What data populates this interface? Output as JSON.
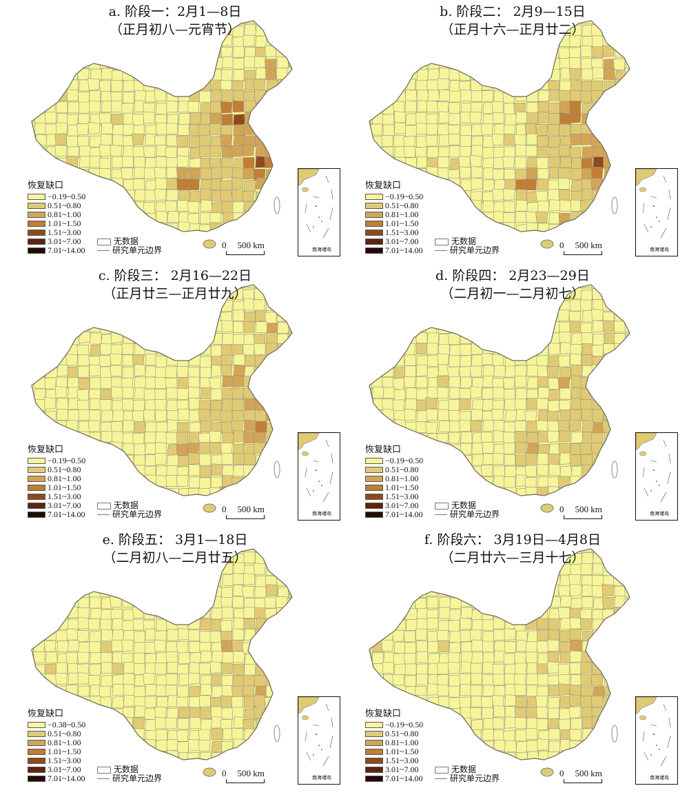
{
  "colors": {
    "c1": "#f6f59a",
    "c2": "#e0cb74",
    "c3": "#d2a556",
    "c4": "#c17e34",
    "c5": "#8f4a1a",
    "c6": "#5c2410",
    "c7": "#230a05",
    "border": "#999388",
    "nodata": "#ffffff"
  },
  "panels": [
    {
      "title1": "a. 阶段一：2月1—8日",
      "title2": "（正月初八—元宵节）",
      "intensity": 1.0,
      "legend_title": "恢复缺口",
      "classes": [
        "−0.19~0.50",
        "0.51~0.80",
        "0.81~1.00",
        "1.01~1.50",
        "1.51~3.00",
        "3.01~7.00",
        "7.01~14.00"
      ],
      "no_data": "无数据",
      "boundary": "研究单元边界",
      "scale_zero": "0",
      "scale_label": "500 km",
      "inset_label": "南海诸岛"
    },
    {
      "title1": "b. 阶段二： 2月9—15日",
      "title2": "（正月十六—正月廿二）",
      "intensity": 0.85,
      "legend_title": "恢复缺口",
      "classes": [
        "−0.19~0.50",
        "0.51~0.80",
        "0.81~1.00",
        "1.01~1.50",
        "1.51~3.00",
        "3.01~7.00",
        "7.01~14.00"
      ],
      "no_data": "无数据",
      "boundary": "研究单元边界",
      "scale_zero": "0",
      "scale_label": "500 km",
      "inset_label": "南海诸岛"
    },
    {
      "title1": "c. 阶段三： 2月16—22日",
      "title2": "（正月廿三—正月廿九）",
      "intensity": 0.62,
      "legend_title": "恢复缺口",
      "classes": [
        "−0.19~0.50",
        "0.51~0.80",
        "0.81~1.00",
        "1.01~1.50",
        "1.51~3.00",
        "3.01~7.00",
        "7.01~14.00"
      ],
      "no_data": "无数据",
      "boundary": "研究单元边界",
      "scale_zero": "0",
      "scale_label": "500 km",
      "inset_label": "南海诸岛"
    },
    {
      "title1": "d. 阶段四： 2月23—29日",
      "title2": "（二月初一—二月初七）",
      "intensity": 0.45,
      "legend_title": "恢复缺口",
      "classes": [
        "−0.19~0.50",
        "0.51~0.80",
        "0.81~1.00",
        "1.01~1.50",
        "1.51~3.00",
        "3.01~7.00",
        "7.01~14.00"
      ],
      "no_data": "无数据",
      "boundary": "研究单元边界",
      "scale_zero": "0",
      "scale_label": "500 km",
      "inset_label": "南海诸岛"
    },
    {
      "title1": "e. 阶段五： 3月1—18日",
      "title2": "（二月初八—二月廿五）",
      "intensity": 0.32,
      "legend_title": "恢复缺口",
      "classes": [
        "−0.38~0.50",
        "0.51~0.80",
        "0.81~1.00",
        "1.01~1.50",
        "1.51~3.00",
        "3.01~7.00",
        "7.01~14.00"
      ],
      "no_data": "无数据",
      "boundary": "研究单元边界",
      "scale_zero": "0",
      "scale_label": "500 km",
      "inset_label": "南海诸岛"
    },
    {
      "title1": "f. 阶段六： 3月19日—4月8日",
      "title2": "（二月廿六—三月十七）",
      "intensity": 0.36,
      "legend_title": "恢复缺口",
      "classes": [
        "−0.19~0.50",
        "0.51~0.80",
        "0.81~1.00",
        "1.01~1.50",
        "1.51~3.00",
        "3.01~7.00",
        "7.01~14.00"
      ],
      "no_data": "无数据",
      "boundary": "研究单元边界",
      "scale_zero": "0",
      "scale_label": "500 km",
      "inset_label": "南海诸岛"
    }
  ]
}
